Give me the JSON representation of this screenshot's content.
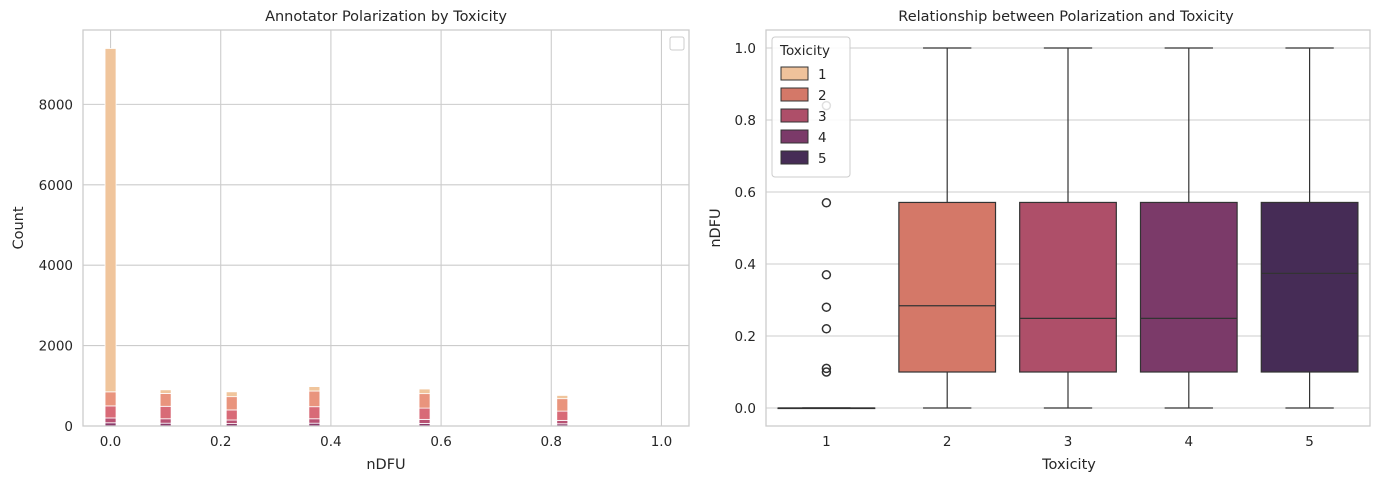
{
  "colors": {
    "t1": "#efc29b",
    "t2": "#d47868",
    "t3": "#ae4f69",
    "t4": "#7b3a69",
    "t5": "#462c56",
    "hist_t1": "#f0c59c",
    "hist_t2": "#e9947d",
    "hist_t3": "#d86a77",
    "hist_t4": "#b85173",
    "hist_t5": "#8a3b6b"
  },
  "chart_data": [
    {
      "type": "bar",
      "title": "Annotator Polarization by Toxicity",
      "xlabel": "nDFU",
      "ylabel": "Count",
      "xlim": [
        -0.05,
        1.05
      ],
      "ylim": [
        0,
        9850
      ],
      "xticks": [
        "0.0",
        "0.2",
        "0.4",
        "0.6",
        "0.8",
        "1.0"
      ],
      "yticks": [
        "0",
        "2000",
        "4000",
        "6000",
        "8000"
      ],
      "grid": true,
      "stacked": true,
      "bin_width": 0.02,
      "x": [
        0.0,
        0.1,
        0.22,
        0.37,
        0.57,
        0.82
      ],
      "series": [
        {
          "name": "5",
          "values": [
            80,
            70,
            60,
            70,
            65,
            55
          ]
        },
        {
          "name": "4",
          "values": [
            120,
            110,
            90,
            110,
            100,
            85
          ]
        },
        {
          "name": "3",
          "values": [
            300,
            310,
            250,
            300,
            280,
            230
          ]
        },
        {
          "name": "2",
          "values": [
            350,
            320,
            330,
            390,
            360,
            310
          ]
        },
        {
          "name": "1",
          "values": [
            8540,
            90,
            120,
            110,
            115,
            80
          ]
        }
      ]
    },
    {
      "type": "box",
      "title": "Relationship between Polarization and Toxicity",
      "xlabel": "Toxicity",
      "ylabel": "nDFU",
      "categories": [
        "1",
        "2",
        "3",
        "4",
        "5"
      ],
      "ylim": [
        -0.05,
        1.05
      ],
      "yticks": [
        "0.0",
        "0.2",
        "0.4",
        "0.6",
        "0.8",
        "1.0"
      ],
      "grid": true,
      "legend": {
        "title": "Toxicity",
        "entries": [
          "1",
          "2",
          "3",
          "4",
          "5"
        ],
        "placement": "top-left"
      },
      "boxes": [
        {
          "category": "1",
          "whislo": 0.0,
          "q1": 0.0,
          "median": 0.0,
          "q3": 0.0,
          "whishi": 0.0,
          "fliers": [
            0.1,
            0.11,
            0.22,
            0.28,
            0.37,
            0.57,
            0.84
          ]
        },
        {
          "category": "2",
          "whislo": 0.0,
          "q1": 0.1,
          "median": 0.284,
          "q3": 0.571,
          "whishi": 1.0,
          "fliers": []
        },
        {
          "category": "3",
          "whislo": 0.0,
          "q1": 0.1,
          "median": 0.249,
          "q3": 0.571,
          "whishi": 1.0,
          "fliers": []
        },
        {
          "category": "4",
          "whislo": 0.0,
          "q1": 0.1,
          "median": 0.249,
          "q3": 0.571,
          "whishi": 1.0,
          "fliers": []
        },
        {
          "category": "5",
          "whislo": 0.0,
          "q1": 0.1,
          "median": 0.374,
          "q3": 0.571,
          "whishi": 1.0,
          "fliers": []
        }
      ]
    }
  ]
}
